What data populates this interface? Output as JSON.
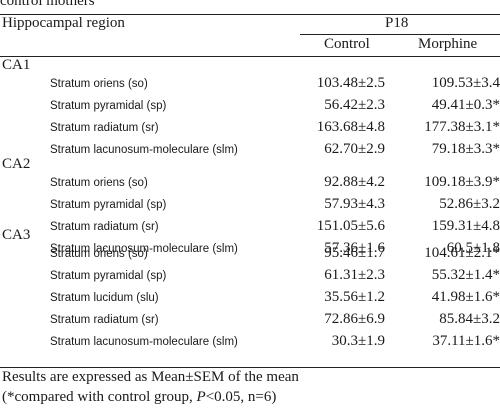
{
  "caption": "control mothers",
  "header": {
    "region_label": "Hippocampal region",
    "age_group": "P18",
    "col_control": "Control",
    "col_morphine": "Morphine"
  },
  "sections": [
    {
      "name": "CA1",
      "rows": [
        {
          "layer": "Stratum oriens (so)",
          "control": "103.48±2.5",
          "morphine": "109.53±3.4"
        },
        {
          "layer": "Stratum pyramidal (sp)",
          "control": "56.42±2.3",
          "morphine": "49.41±0.3*"
        },
        {
          "layer": "Stratum radiatum (sr)",
          "control": "163.68±4.8",
          "morphine": "177.38±3.1*"
        },
        {
          "layer": "Stratum lacunosum-moleculare (slm)",
          "control": "62.70±2.9",
          "morphine": "79.18±3.3*"
        }
      ]
    },
    {
      "name": "CA2",
      "rows": [
        {
          "layer": "Stratum oriens (so)",
          "control": "92.88±4.2",
          "morphine": "109.18±3.9*"
        },
        {
          "layer": "Stratum pyramidal (sp)",
          "control": "57.93±4.3",
          "morphine": "52.86±3.2"
        },
        {
          "layer": "Stratum radiatum (sr)",
          "control": "151.05±5.6",
          "morphine": "159.31±4.8"
        },
        {
          "layer": "Stratum lacunosum-moleculare (slm)",
          "control": "57.36±1.6",
          "morphine": "60.5±1.8"
        }
      ]
    },
    {
      "name": "CA3",
      "rows": [
        {
          "layer": "Stratum oriens (so)",
          "control": "95.46±1.7",
          "morphine": "104.61±2.1*"
        },
        {
          "layer": "Stratum pyramidal (sp)",
          "control": "61.31±2.3",
          "morphine": "55.32±1.4*"
        },
        {
          "layer": "Stratum lucidum (slu)",
          "control": "35.56±1.2",
          "morphine": "41.98±1.6*"
        },
        {
          "layer": "Stratum radiatum (sr)",
          "control": "72.86±6.9",
          "morphine": "85.84±3.2"
        },
        {
          "layer": "Stratum lacunosum-moleculare (slm)",
          "control": "30.3±1.9",
          "morphine": "37.11±1.6*"
        }
      ]
    }
  ],
  "footnote": {
    "line1": "Results are expressed as Mean±SEM of the mean",
    "line2_prefix": "(*compared with control group, ",
    "line2_p": "P",
    "line2_suffix": "<0.05, n=6)"
  }
}
